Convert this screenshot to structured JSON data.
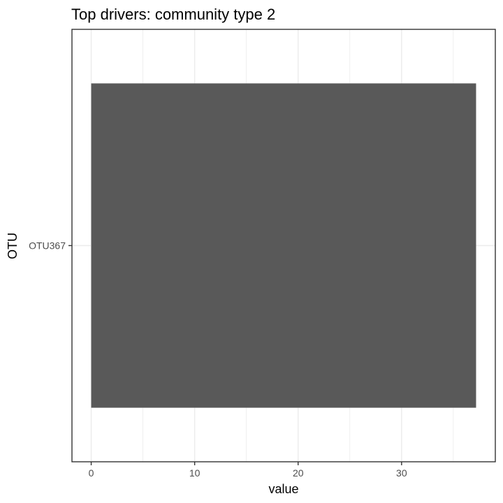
{
  "chart_data": {
    "type": "bar",
    "orientation": "horizontal",
    "title": "Top drivers: community type 2",
    "xlabel": "value",
    "ylabel": "OTU",
    "categories": [
      "OTU367"
    ],
    "values": [
      37.2
    ],
    "xlim": [
      -1.86,
      39.06
    ],
    "xticks": [
      0,
      10,
      20,
      30
    ],
    "xtick_labels": [
      "0",
      "10",
      "20",
      "30"
    ],
    "grid": true,
    "legend": "none",
    "colors": {
      "bar": "#595959",
      "grid": "#ebebeb",
      "panel_border": "#333333",
      "tick_text": "#4d4d4d"
    }
  }
}
